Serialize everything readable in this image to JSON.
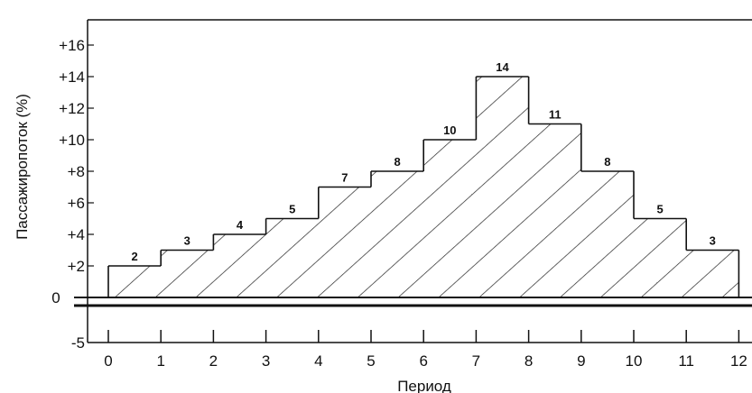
{
  "chart_data": {
    "type": "area",
    "style": "step",
    "title": "",
    "xlabel": "Период",
    "ylabel": "Пассажиропоток (%)",
    "x_ticks": [
      "0",
      "1",
      "2",
      "3",
      "4",
      "5",
      "6",
      "7",
      "8",
      "9",
      "10",
      "11",
      "12"
    ],
    "y_ticks": [
      "+16",
      "+14",
      "+12",
      "+10",
      "+8",
      "+6",
      "+4",
      "+2",
      "0",
      "-5"
    ],
    "xlim": [
      0,
      12
    ],
    "ylim": [
      -5,
      16
    ],
    "periods": [
      0,
      1,
      2,
      3,
      4,
      5,
      6,
      7,
      8,
      9,
      10,
      11
    ],
    "values": [
      2,
      3,
      4,
      5,
      7,
      8,
      10,
      14,
      11,
      8,
      5,
      3
    ],
    "data_labels": [
      "2",
      "3",
      "4",
      "5",
      "7",
      "8",
      "10",
      "14",
      "11",
      "8",
      "5",
      "3"
    ],
    "fill": "hatched",
    "grid": false,
    "legend": "none",
    "colors": {
      "line": "#111111",
      "background": "#ffffff"
    }
  }
}
